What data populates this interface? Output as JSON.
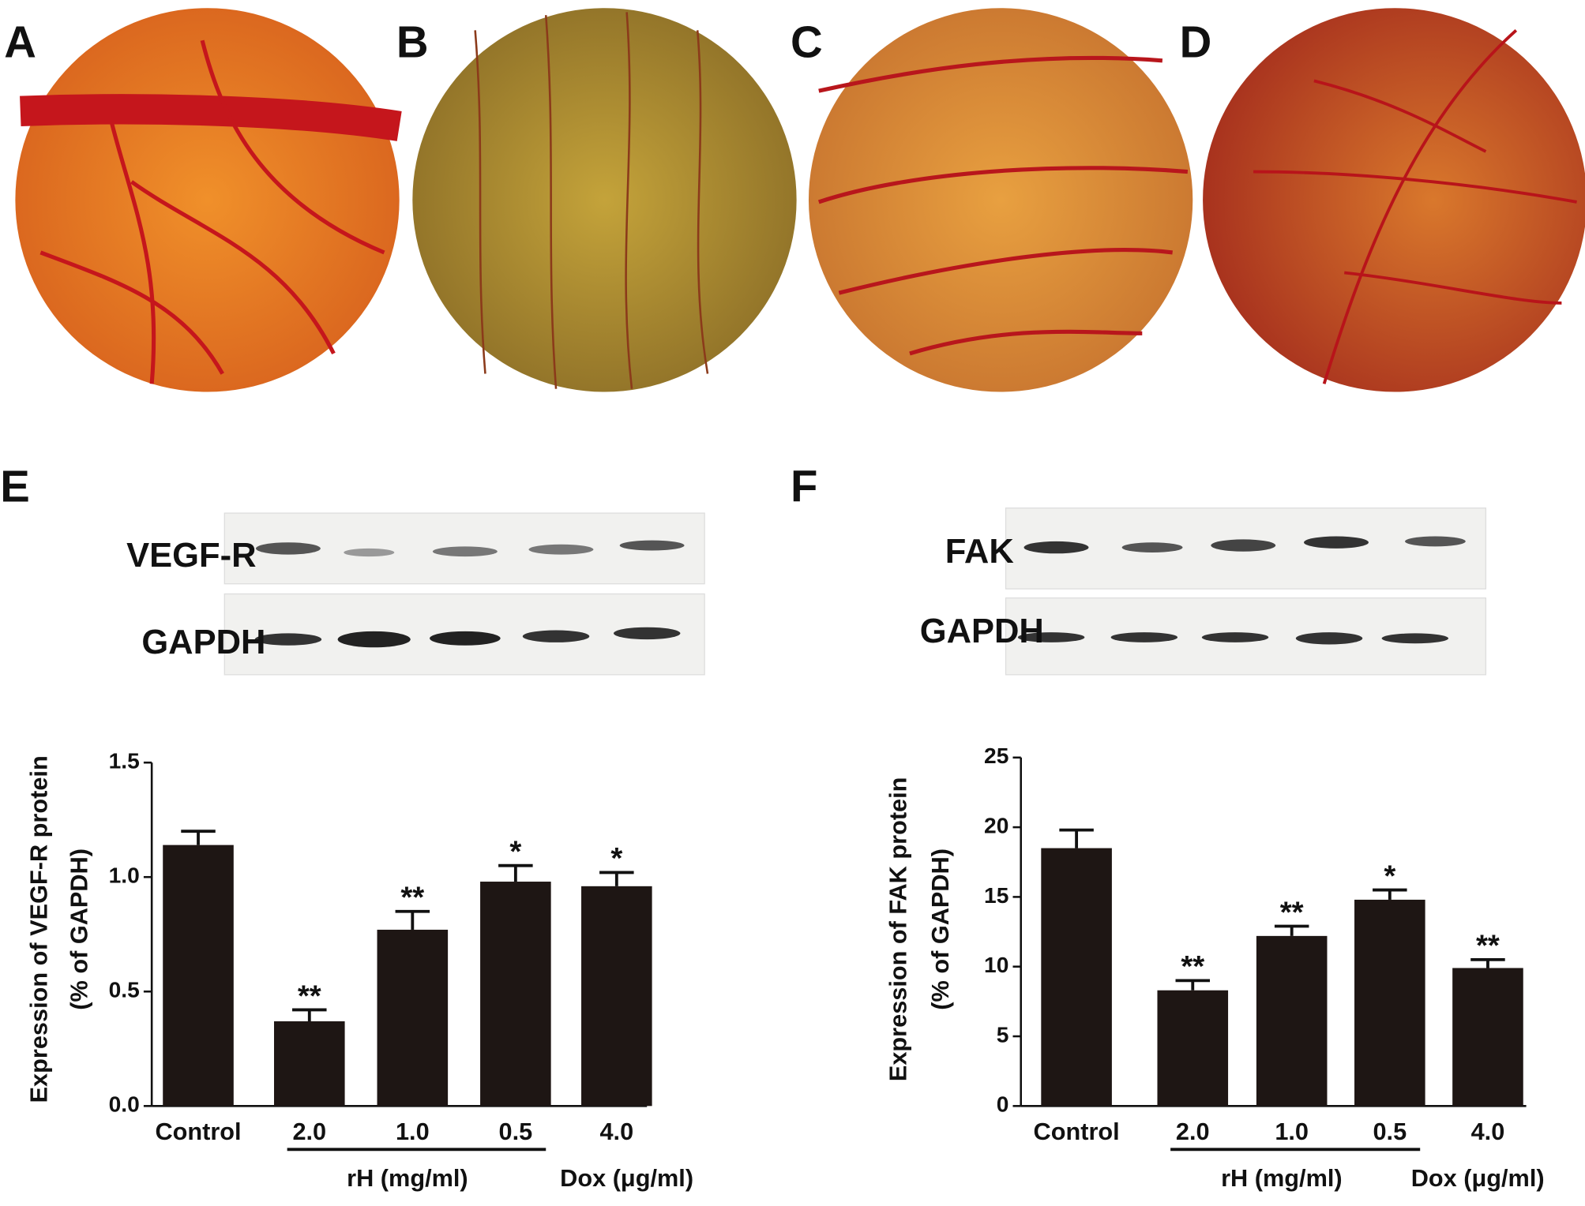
{
  "photo_panels": [
    "A",
    "B",
    "C",
    "D"
  ],
  "blots": [
    {
      "panel": "E",
      "labels": [
        "VEGF-R",
        "GAPDH"
      ]
    },
    {
      "panel": "F",
      "labels": [
        "FAK",
        "GAPDH"
      ]
    }
  ],
  "chart_data": [
    {
      "type": "bar",
      "y_label": [
        "Expression of VEGF-R protein",
        "(% of GAPDH)"
      ],
      "categories": [
        "Control",
        "2.0",
        "1.0",
        "0.5",
        "4.0"
      ],
      "values": [
        1.14,
        0.37,
        0.77,
        0.98,
        0.96
      ],
      "errors": [
        0.06,
        0.05,
        0.08,
        0.07,
        0.06
      ],
      "annotations": [
        null,
        "**",
        "**",
        "*",
        "*"
      ],
      "group_labels": [
        "rH (mg/ml)",
        "Dox (μg/ml)"
      ],
      "color": "#1e1614",
      "ylim": [
        0,
        1.5
      ],
      "yticks": [
        {
          "value": 0,
          "label": "0.0"
        },
        0.5,
        {
          "value": 1,
          "label": "1.0"
        },
        1.5
      ]
    },
    {
      "type": "bar",
      "y_label": [
        "Expression of FAK protein",
        "(% of GAPDH)"
      ],
      "categories": [
        "Control",
        "2.0",
        "1.0",
        "0.5",
        "4.0"
      ],
      "values": [
        18.5,
        8.3,
        12.2,
        14.8,
        9.9
      ],
      "errors": [
        1.3,
        0.7,
        0.7,
        0.7,
        0.6
      ],
      "annotations": [
        null,
        "**",
        "**",
        "*",
        "**"
      ],
      "group_labels": [
        "rH (mg/ml)",
        "Dox (μg/ml)"
      ],
      "color": "#1e1614",
      "ylim": [
        0,
        25
      ],
      "yticks": [
        0,
        5,
        10,
        15,
        20,
        25
      ]
    }
  ]
}
